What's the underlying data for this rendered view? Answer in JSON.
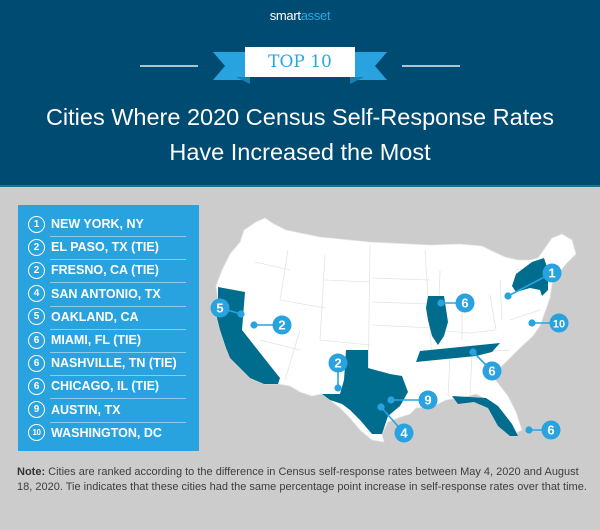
{
  "header": {
    "brand_part1": "smart",
    "brand_part2": "asset",
    "badge": "TOP 10",
    "title_line1": "Cities Where 2020 Census Self-Response Rates",
    "title_line2": "Have Increased the Most"
  },
  "colors": {
    "header_bg": "#004b72",
    "accent_blue": "#29a3df",
    "highlight_state": "#006d8f",
    "state_fill": "#ffffff",
    "background": "#cccccc"
  },
  "rankings": [
    {
      "rank": "1",
      "city": "NEW YORK, NY"
    },
    {
      "rank": "2",
      "city": "EL PASO, TX (TIE)"
    },
    {
      "rank": "2",
      "city": "FRESNO, CA (TIE)"
    },
    {
      "rank": "4",
      "city": "SAN ANTONIO, TX"
    },
    {
      "rank": "5",
      "city": "OAKLAND, CA"
    },
    {
      "rank": "6",
      "city": "MIAMI, FL (TIE)"
    },
    {
      "rank": "6",
      "city": "NASHVILLE, TN (TIE)"
    },
    {
      "rank": "6",
      "city": "CHICAGO, IL (TIE)"
    },
    {
      "rank": "9",
      "city": "AUSTIN, TX"
    },
    {
      "rank": "10",
      "city": "WASHINGTON, DC"
    }
  ],
  "map": {
    "highlighted_states": [
      "New York",
      "California",
      "Texas",
      "Illinois",
      "Tennessee",
      "Florida"
    ],
    "markers": [
      {
        "label": "1",
        "city": "New York, NY"
      },
      {
        "label": "5",
        "city": "Oakland, CA"
      },
      {
        "label": "2",
        "city": "Fresno, CA"
      },
      {
        "label": "2",
        "city": "El Paso, TX"
      },
      {
        "label": "9",
        "city": "Austin, TX"
      },
      {
        "label": "4",
        "city": "San Antonio, TX"
      },
      {
        "label": "6",
        "city": "Chicago, IL"
      },
      {
        "label": "6",
        "city": "Nashville, TN"
      },
      {
        "label": "6",
        "city": "Miami, FL"
      },
      {
        "label": "10",
        "city": "Washington, DC"
      }
    ]
  },
  "note": {
    "label": "Note:",
    "text": " Cities are ranked according to the difference in Census self-response rates between May 4, 2020 and August 18, 2020.  Tie indicates that these cities had the same percentage point increase in self-response rates over that time."
  }
}
